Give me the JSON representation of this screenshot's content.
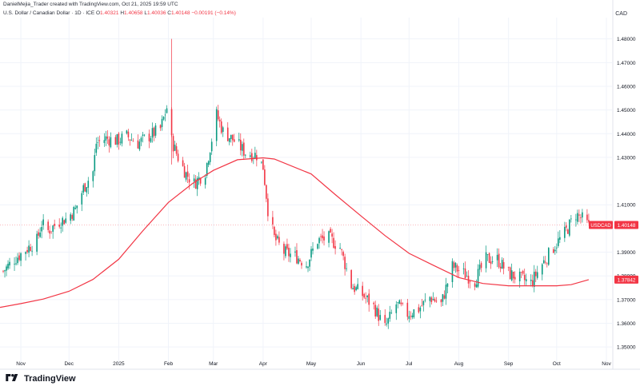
{
  "header": {
    "attribution": "DanielMejia_Trader created with TradingView.com, Oct 21, 2025 19:59 UTC",
    "symbol_line": "U.S. Dollar / Canadian Dollar · 1D · ICE",
    "open_label": "O",
    "open": "1.40321",
    "high_label": "H",
    "high": "1.40658",
    "low_label": "L",
    "low": "1.40036",
    "close_label": "C",
    "close": "1.40148",
    "change": "−0.00191 (−0.14%)",
    "currency": "CAD"
  },
  "footer": {
    "brand": "TradingView"
  },
  "colors": {
    "up": "#089981",
    "down": "#f23645",
    "ma": "#f23645",
    "grid": "#f0f3fa",
    "price_line": "#f23645"
  },
  "chart_data": {
    "type": "candlestick",
    "title": "U.S. Dollar / Canadian Dollar · 1D · ICE",
    "y_axis": {
      "ticks": [
        "1.48000",
        "1.47000",
        "1.46000",
        "1.45000",
        "1.44000",
        "1.43000",
        "1.41000",
        "1.39000",
        "1.38000",
        "1.37000",
        "1.36000",
        "1.35000"
      ],
      "range": [
        1.346,
        1.489
      ],
      "position": "right"
    },
    "x_axis": {
      "ticks": [
        "Nov",
        "Dec",
        "2025",
        "Feb",
        "Mar",
        "Apr",
        "May",
        "Jun",
        "Jul",
        "Aug",
        "Sep",
        "Oct",
        "Nov"
      ],
      "tick_dates": [
        "2024-11-01",
        "2024-12-01",
        "2025-01-01",
        "2025-02-01",
        "2025-03-01",
        "2025-04-01",
        "2025-05-01",
        "2025-06-01",
        "2025-07-01",
        "2025-08-01",
        "2025-09-01",
        "2025-10-01",
        "2025-11-01"
      ],
      "range": [
        "2024-10-19",
        "2025-11-05"
      ]
    },
    "price_labels": [
      {
        "name": "USDCAD",
        "value": "1.40148"
      },
      {
        "name": "MA",
        "value": "1.37842"
      }
    ],
    "current_price": 1.40148,
    "closes_path": [
      [
        "2024-10-21",
        1.382
      ],
      [
        "2024-10-28",
        1.387
      ],
      [
        "2024-11-04",
        1.391
      ],
      [
        "2024-11-11",
        1.395
      ],
      [
        "2024-11-14",
        1.402
      ],
      [
        "2024-11-18",
        1.399
      ],
      [
        "2024-11-25",
        1.403
      ],
      [
        "2024-11-29",
        1.404
      ],
      [
        "2024-12-05",
        1.408
      ],
      [
        "2024-12-10",
        1.417
      ],
      [
        "2024-12-16",
        1.424
      ],
      [
        "2024-12-18",
        1.436
      ],
      [
        "2024-12-24",
        1.438
      ],
      [
        "2024-12-31",
        1.437
      ],
      [
        "2025-01-06",
        1.439
      ],
      [
        "2025-01-13",
        1.436
      ],
      [
        "2025-01-20",
        1.439
      ],
      [
        "2025-01-27",
        1.442
      ],
      [
        "2025-01-31",
        1.451
      ],
      [
        "2025-02-03",
        1.437
      ],
      [
        "2025-02-07",
        1.43
      ],
      [
        "2025-02-12",
        1.423
      ],
      [
        "2025-02-17",
        1.419
      ],
      [
        "2025-02-24",
        1.424
      ],
      [
        "2025-03-03",
        1.448
      ],
      [
        "2025-03-07",
        1.441
      ],
      [
        "2025-03-14",
        1.437
      ],
      [
        "2025-03-21",
        1.432
      ],
      [
        "2025-03-28",
        1.431
      ],
      [
        "2025-04-01",
        1.426
      ],
      [
        "2025-04-04",
        1.408
      ],
      [
        "2025-04-08",
        1.396
      ],
      [
        "2025-04-14",
        1.39
      ],
      [
        "2025-04-22",
        1.388
      ],
      [
        "2025-04-28",
        1.385
      ],
      [
        "2025-05-05",
        1.395
      ],
      [
        "2025-05-12",
        1.396
      ],
      [
        "2025-05-19",
        1.392
      ],
      [
        "2025-05-26",
        1.376
      ],
      [
        "2025-06-02",
        1.372
      ],
      [
        "2025-06-09",
        1.367
      ],
      [
        "2025-06-16",
        1.358
      ],
      [
        "2025-06-23",
        1.368
      ],
      [
        "2025-06-30",
        1.364
      ],
      [
        "2025-07-07",
        1.366
      ],
      [
        "2025-07-14",
        1.371
      ],
      [
        "2025-07-21",
        1.368
      ],
      [
        "2025-07-28",
        1.384
      ],
      [
        "2025-08-04",
        1.381
      ],
      [
        "2025-08-11",
        1.378
      ],
      [
        "2025-08-18",
        1.387
      ],
      [
        "2025-08-25",
        1.387
      ],
      [
        "2025-09-01",
        1.381
      ],
      [
        "2025-09-08",
        1.379
      ],
      [
        "2025-09-15",
        1.377
      ],
      [
        "2025-09-22",
        1.385
      ],
      [
        "2025-09-29",
        1.392
      ],
      [
        "2025-10-06",
        1.398
      ],
      [
        "2025-10-13",
        1.406
      ],
      [
        "2025-10-17",
        1.404
      ],
      [
        "2025-10-21",
        1.401
      ]
    ],
    "spikes": [
      [
        "2025-02-03",
        1.48
      ],
      [
        "2025-02-03",
        1.427
      ]
    ],
    "moving_average": {
      "points": [
        [
          "2024-10-19",
          1.3667
        ],
        [
          "2024-11-01",
          1.3683
        ],
        [
          "2024-11-15",
          1.3702
        ],
        [
          "2024-12-01",
          1.3735
        ],
        [
          "2024-12-16",
          1.3785
        ],
        [
          "2025-01-01",
          1.387
        ],
        [
          "2025-01-16",
          1.399
        ],
        [
          "2025-02-01",
          1.411
        ],
        [
          "2025-02-16",
          1.419
        ],
        [
          "2025-03-01",
          1.4245
        ],
        [
          "2025-03-16",
          1.429
        ],
        [
          "2025-04-01",
          1.4298
        ],
        [
          "2025-04-08",
          1.4293
        ],
        [
          "2025-05-01",
          1.423
        ],
        [
          "2025-05-16",
          1.4143
        ],
        [
          "2025-06-01",
          1.4053
        ],
        [
          "2025-06-16",
          1.397
        ],
        [
          "2025-07-01",
          1.3895
        ],
        [
          "2025-07-16",
          1.3845
        ],
        [
          "2025-08-01",
          1.3793
        ],
        [
          "2025-08-16",
          1.3768
        ],
        [
          "2025-09-01",
          1.3758
        ],
        [
          "2025-09-16",
          1.3758
        ],
        [
          "2025-10-01",
          1.3758
        ],
        [
          "2025-10-10",
          1.3763
        ],
        [
          "2025-10-21",
          1.3784
        ]
      ]
    }
  }
}
